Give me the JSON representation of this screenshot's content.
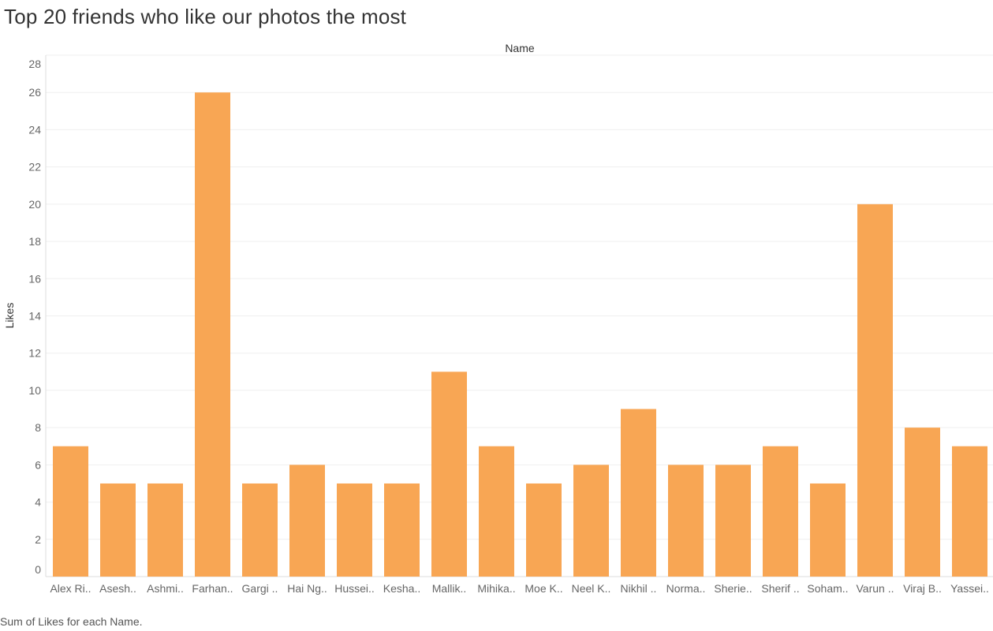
{
  "title": "Top 20 friends who like our photos the most",
  "caption": "Sum of Likes for each Name.",
  "chart_data": {
    "type": "bar",
    "title": "Top 20 friends who like our photos the most",
    "xlabel": "Name",
    "ylabel": "Likes",
    "ylim": [
      0,
      28
    ],
    "y_ticks": [
      0,
      2,
      4,
      6,
      8,
      10,
      12,
      14,
      16,
      18,
      20,
      22,
      24,
      26,
      28
    ],
    "grid": true,
    "bar_color": "#f8a654",
    "categories": [
      "Alex Ri..",
      "Asesh..",
      "Ashmi..",
      "Farhan..",
      "Gargi ..",
      "Hai Ng..",
      "Hussei..",
      "Kesha..",
      "Mallik..",
      "Mihika..",
      "Moe K..",
      "Neel K..",
      "Nikhil ..",
      "Norma..",
      "Sherie..",
      "Sherif ..",
      "Soham..",
      "Varun ..",
      "Viraj B..",
      "Yassei.."
    ],
    "values": [
      7,
      5,
      5,
      26,
      5,
      6,
      5,
      5,
      11,
      7,
      5,
      6,
      9,
      6,
      6,
      7,
      5,
      20,
      8,
      7
    ]
  }
}
